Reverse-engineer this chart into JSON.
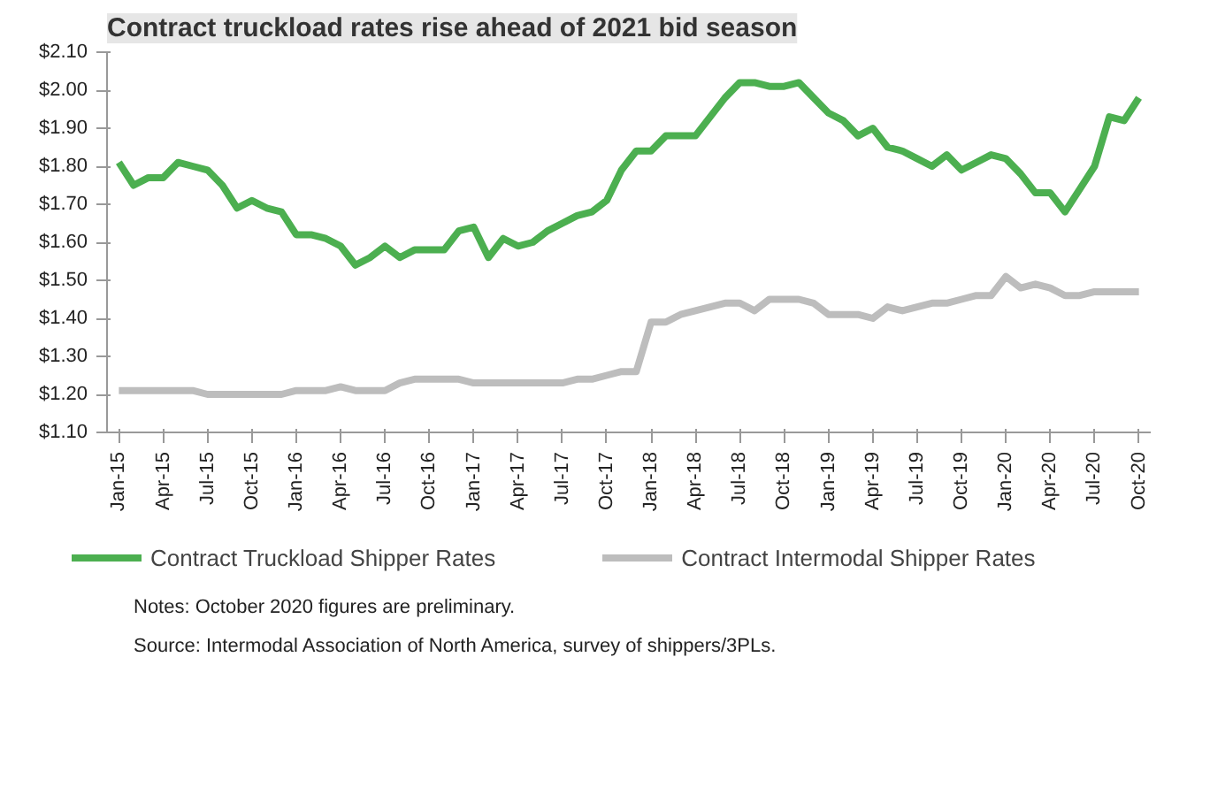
{
  "chart_data": {
    "type": "line",
    "title": "Contract truckload rates rise ahead of 2021 bid season",
    "categories": [
      "Jan-15",
      null,
      null,
      "Apr-15",
      null,
      null,
      "Jul-15",
      null,
      null,
      "Oct-15",
      null,
      null,
      "Jan-16",
      null,
      null,
      "Apr-16",
      null,
      null,
      "Jul-16",
      null,
      null,
      "Oct-16",
      null,
      null,
      "Jan-17",
      null,
      null,
      "Apr-17",
      null,
      null,
      "Jul-17",
      null,
      null,
      "Oct-17",
      null,
      null,
      "Jan-18",
      null,
      null,
      "Apr-18",
      null,
      null,
      "Jul-18",
      null,
      null,
      "Oct-18",
      null,
      null,
      "Jan-19",
      null,
      null,
      "Apr-19",
      null,
      null,
      "Jul-19",
      null,
      null,
      "Oct-19",
      null,
      null,
      "Jan-20",
      null,
      null,
      "Apr-20",
      null,
      null,
      "Jul-20",
      null,
      null,
      "Oct-20"
    ],
    "series": [
      {
        "name": "Contract Truckload Shipper Rates",
        "color": "#4caf50",
        "values": [
          1.81,
          1.75,
          1.77,
          1.77,
          1.81,
          1.8,
          1.79,
          1.75,
          1.69,
          1.71,
          1.69,
          1.68,
          1.62,
          1.62,
          1.61,
          1.59,
          1.54,
          1.56,
          1.59,
          1.56,
          1.58,
          1.58,
          1.58,
          1.63,
          1.64,
          1.56,
          1.61,
          1.59,
          1.6,
          1.63,
          1.65,
          1.67,
          1.68,
          1.71,
          1.79,
          1.84,
          1.84,
          1.88,
          1.88,
          1.88,
          1.93,
          1.98,
          2.02,
          2.02,
          2.01,
          2.01,
          2.02,
          1.98,
          1.94,
          1.92,
          1.88,
          1.9,
          1.85,
          1.84,
          1.82,
          1.8,
          1.83,
          1.79,
          1.81,
          1.83,
          1.82,
          1.78,
          1.73,
          1.73,
          1.68,
          1.74,
          1.8,
          1.93,
          1.92,
          1.98
        ]
      },
      {
        "name": "Contract Intermodal Shipper Rates",
        "color": "#bdbdbd",
        "values": [
          1.21,
          1.21,
          1.21,
          1.21,
          1.21,
          1.21,
          1.2,
          1.2,
          1.2,
          1.2,
          1.2,
          1.2,
          1.21,
          1.21,
          1.21,
          1.22,
          1.21,
          1.21,
          1.21,
          1.23,
          1.24,
          1.24,
          1.24,
          1.24,
          1.23,
          1.23,
          1.23,
          1.23,
          1.23,
          1.23,
          1.23,
          1.24,
          1.24,
          1.25,
          1.26,
          1.26,
          1.39,
          1.39,
          1.41,
          1.42,
          1.43,
          1.44,
          1.44,
          1.42,
          1.45,
          1.45,
          1.45,
          1.44,
          1.41,
          1.41,
          1.41,
          1.4,
          1.43,
          1.42,
          1.43,
          1.44,
          1.44,
          1.45,
          1.46,
          1.46,
          1.51,
          1.48,
          1.49,
          1.48,
          1.46,
          1.46,
          1.47,
          1.47,
          1.47,
          1.47
        ]
      }
    ],
    "ylim": [
      1.1,
      2.1
    ],
    "yticks": [
      {
        "value": 1.1,
        "label": "$1.10"
      },
      {
        "value": 1.2,
        "label": "$1.20"
      },
      {
        "value": 1.3,
        "label": "$1.30"
      },
      {
        "value": 1.4,
        "label": "$1.40"
      },
      {
        "value": 1.5,
        "label": "$1.50"
      },
      {
        "value": 1.6,
        "label": "$1.60"
      },
      {
        "value": 1.7,
        "label": "$1.70"
      },
      {
        "value": 1.8,
        "label": "$1.80"
      },
      {
        "value": 1.9,
        "label": "$1.90"
      },
      {
        "value": 2.0,
        "label": "$2.00"
      },
      {
        "value": 2.1,
        "label": "$2.10"
      }
    ],
    "grid": false,
    "legend": "bottom",
    "annotations": [
      "Notes: October 2020 figures are preliminary.",
      "Source: Intermodal Association of North America, survey of shippers/3PLs."
    ]
  }
}
